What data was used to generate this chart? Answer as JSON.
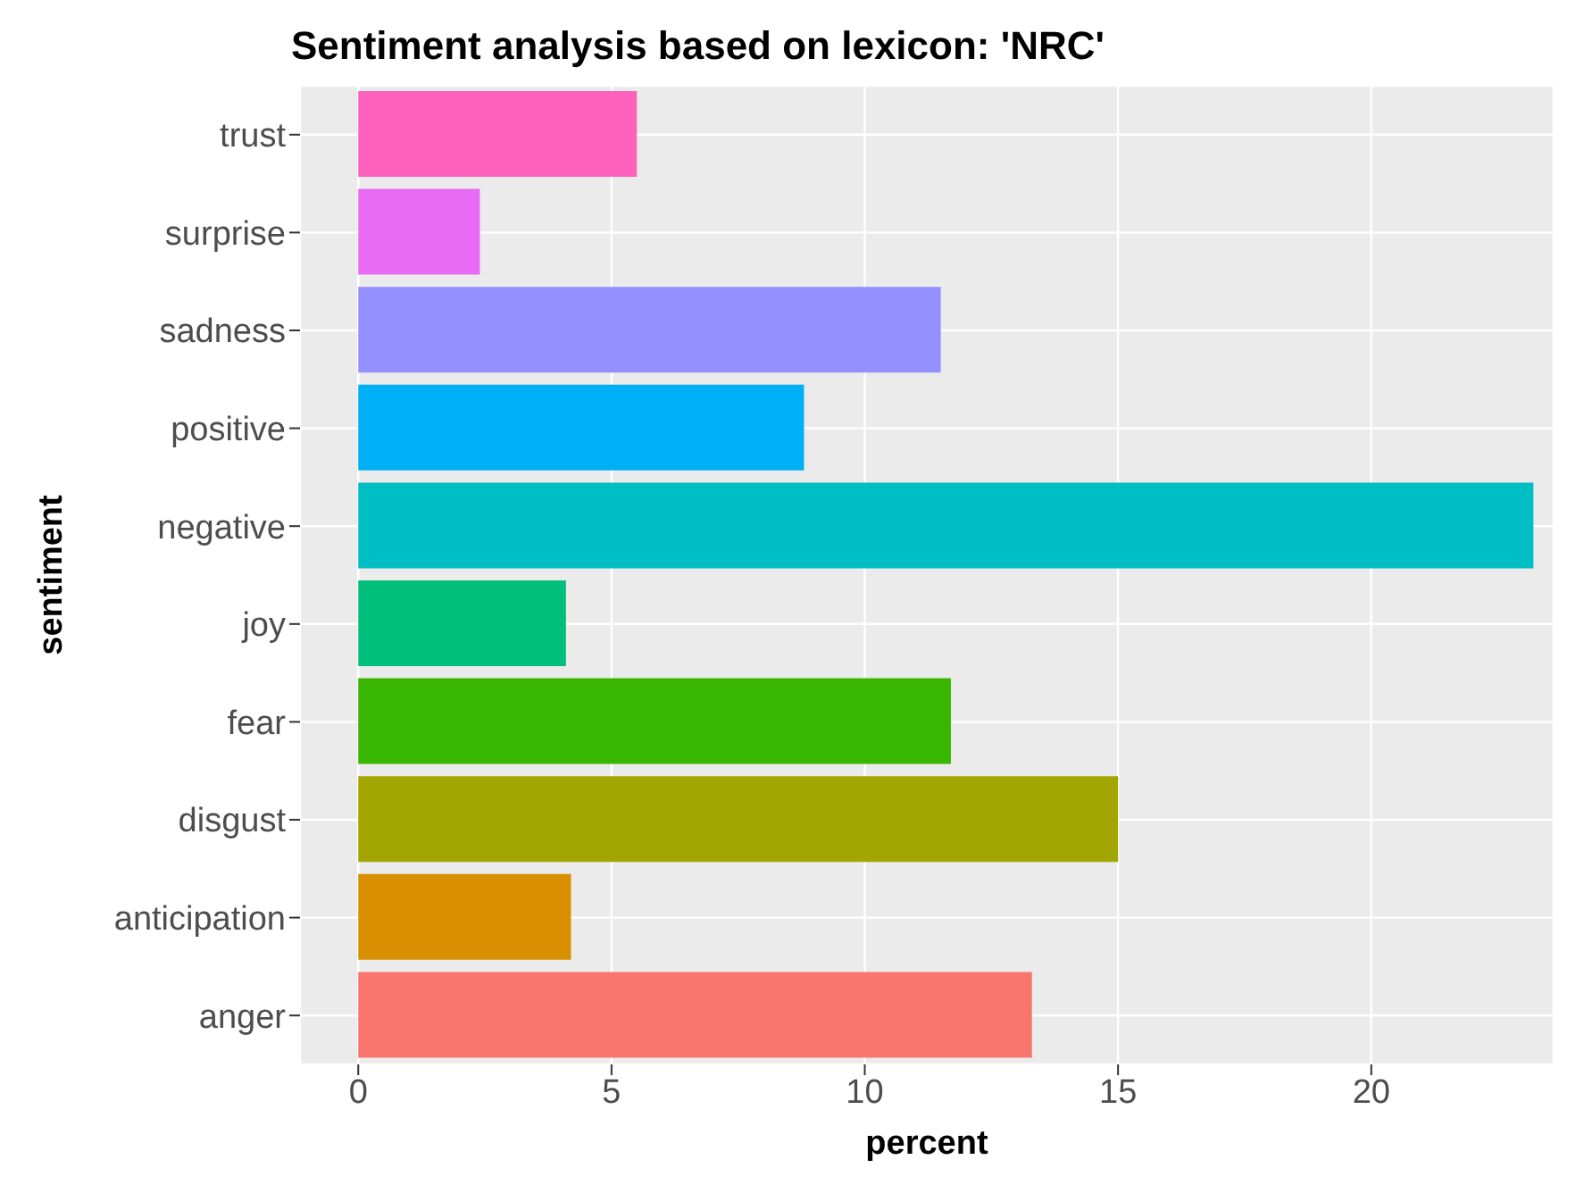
{
  "chart_data": {
    "type": "bar",
    "orientation": "horizontal",
    "title": "Sentiment analysis based on lexicon: 'NRC'",
    "xlabel": "percent",
    "ylabel": "sentiment",
    "categories": [
      "trust",
      "surprise",
      "sadness",
      "positive",
      "negative",
      "joy",
      "fear",
      "disgust",
      "anticipation",
      "anger"
    ],
    "values": [
      5.5,
      2.4,
      11.5,
      8.8,
      23.2,
      4.1,
      11.7,
      15.0,
      4.2,
      13.3
    ],
    "colors": [
      "#ff62bc",
      "#e76bf3",
      "#9590ff",
      "#00b0f6",
      "#00bfc4",
      "#00bf7d",
      "#39b600",
      "#a3a500",
      "#d89000",
      "#f8766d"
    ],
    "xlim": [
      -1.15,
      23.6
    ],
    "xticks": [
      0,
      5,
      10,
      15,
      20
    ],
    "grid": true
  }
}
